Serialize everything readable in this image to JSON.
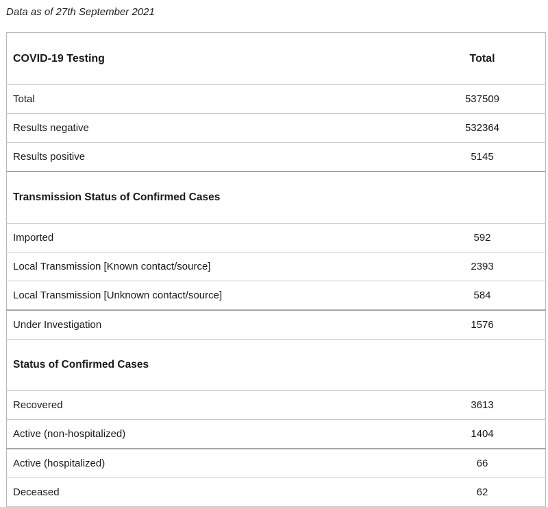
{
  "caption": "Data as of 27th September 2021",
  "table": {
    "header": {
      "label": "COVID-19 Testing",
      "value_header": "Total"
    },
    "testing": [
      {
        "label": "Total",
        "value": "537509"
      },
      {
        "label": "Results negative",
        "value": "532364"
      },
      {
        "label": "Results positive",
        "value": "5145"
      }
    ],
    "transmission_title": "Transmission Status of Confirmed Cases",
    "transmission": [
      {
        "label": "Imported",
        "value": "592"
      },
      {
        "label": "Local Transmission [Known contact/source]",
        "value": "2393"
      },
      {
        "label": "Local Transmission [Unknown contact/source]",
        "value": "584"
      },
      {
        "label": "Under Investigation",
        "value": "1576"
      }
    ],
    "status_title": "Status of Confirmed Cases",
    "status": [
      {
        "label": "Recovered",
        "value": "3613"
      },
      {
        "label": "Active (non-hospitalized)",
        "value": "1404"
      },
      {
        "label": "Active (hospitalized)",
        "value": "66"
      },
      {
        "label": "Deceased",
        "value": "62"
      }
    ]
  }
}
